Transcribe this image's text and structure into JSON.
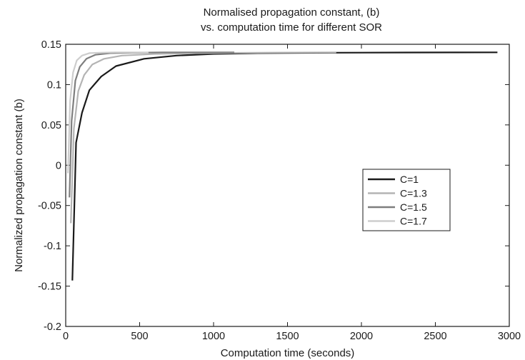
{
  "chart_data": {
    "type": "line",
    "title_line1": "Normalised propagation constant, (b)",
    "title_line2": "vs. computation time for different SOR",
    "xlabel": "Computation time (seconds)",
    "ylabel": "Normalized propagation constant (b)",
    "xlim": [
      0,
      3000
    ],
    "ylim": [
      -0.2,
      0.15
    ],
    "x_ticks": [
      0,
      500,
      1000,
      1500,
      2000,
      2500,
      3000
    ],
    "y_ticks": [
      -0.2,
      -0.15,
      -0.1,
      -0.05,
      0,
      0.05,
      0.1,
      0.15
    ],
    "x_tick_labels": [
      "0",
      "500",
      "1000",
      "1500",
      "2000",
      "2500",
      "3000"
    ],
    "y_tick_labels": [
      "-0.2",
      "-0.15",
      "-0.1",
      "-0.05",
      "0",
      "0.05",
      "0.1",
      "0.15"
    ],
    "grid": false,
    "legend_position": "center-right",
    "series": [
      {
        "name": "C=1",
        "color": "#1a1a1a",
        "x": [
          45,
          70,
          110,
          160,
          240,
          340,
          530,
          750,
          1000,
          1300,
          1800,
          2300,
          2920
        ],
        "y": [
          -0.143,
          0.028,
          0.065,
          0.093,
          0.11,
          0.123,
          0.132,
          0.136,
          0.138,
          0.139,
          0.1395,
          0.1398,
          0.14
        ]
      },
      {
        "name": "C=1.3",
        "color": "#b4b4b4",
        "x": [
          35,
          55,
          85,
          125,
          180,
          260,
          380,
          600,
          900,
          1300,
          1830
        ],
        "y": [
          -0.072,
          0.045,
          0.092,
          0.112,
          0.125,
          0.132,
          0.136,
          0.138,
          0.139,
          0.1395,
          0.14
        ]
      },
      {
        "name": "C=1.5",
        "color": "#7e7e7e",
        "x": [
          25,
          40,
          65,
          95,
          140,
          200,
          300,
          450,
          650,
          950,
          1140
        ],
        "y": [
          -0.04,
          0.055,
          0.105,
          0.122,
          0.132,
          0.137,
          0.139,
          0.1395,
          0.14,
          0.14,
          0.14
        ]
      },
      {
        "name": "C=1.7",
        "color": "#cdcdcd",
        "x": [
          15,
          30,
          50,
          75,
          110,
          160,
          230,
          330,
          450,
          560
        ],
        "y": [
          -0.01,
          0.08,
          0.115,
          0.13,
          0.136,
          0.139,
          0.1395,
          0.14,
          0.14,
          0.14
        ]
      }
    ]
  }
}
